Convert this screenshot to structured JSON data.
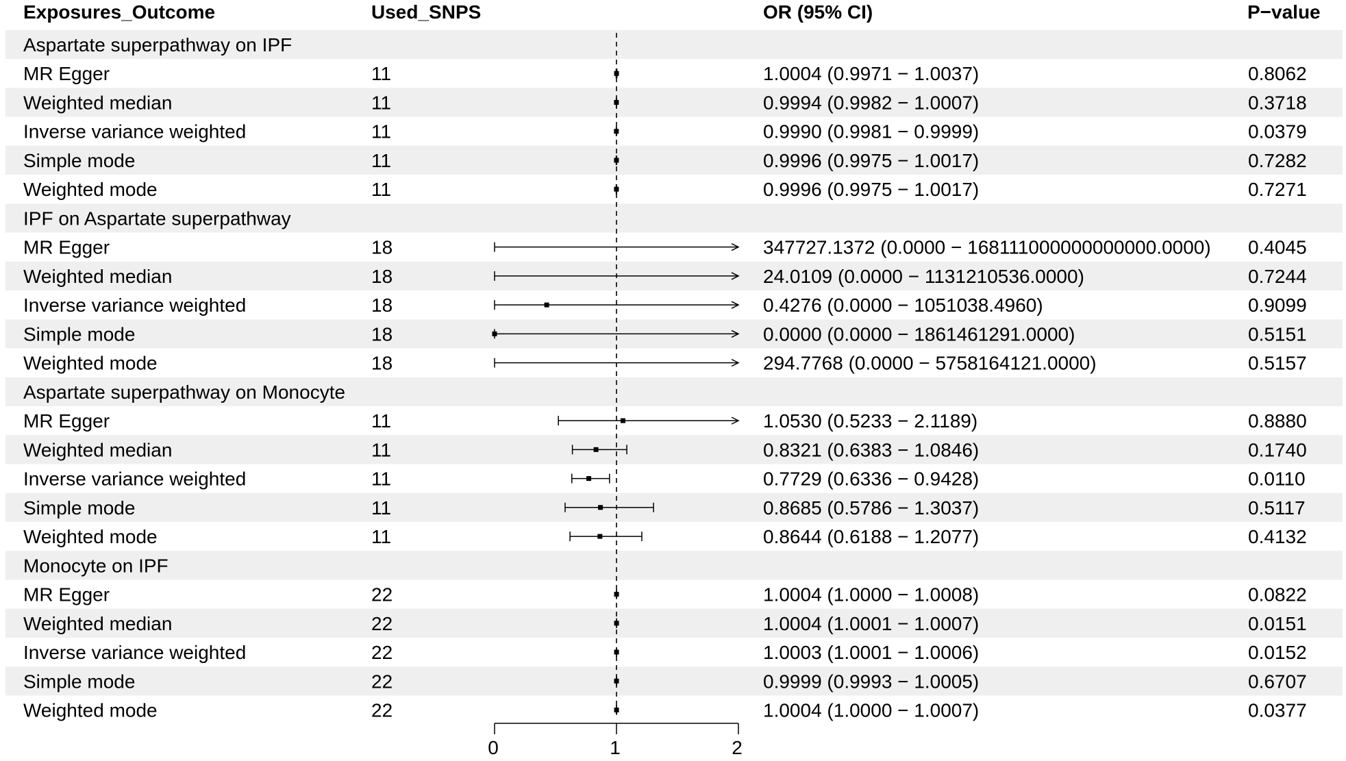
{
  "columns": {
    "exposure": "Exposures_Outcome",
    "snps": "Used_SNPS",
    "or": "OR (95% CI)",
    "p": "P−value"
  },
  "chart_data": {
    "type": "forest",
    "reference_line": 1,
    "xlim": [
      0,
      2
    ],
    "x_ticks": [
      "0",
      "1",
      "2"
    ],
    "rows": [
      {
        "label": "Aspartate superpathway on IPF",
        "group": true
      },
      {
        "label": "MR Egger",
        "snps": "11",
        "or": 1.0004,
        "lo": 0.9971,
        "hi": 1.0037,
        "or_text": "1.0004 (0.9971 − 1.0037)",
        "p": "0.8062"
      },
      {
        "label": "Weighted median",
        "snps": "11",
        "or": 0.9994,
        "lo": 0.9982,
        "hi": 1.0007,
        "or_text": "0.9994 (0.9982 − 1.0007)",
        "p": "0.3718"
      },
      {
        "label": "Inverse variance weighted",
        "snps": "11",
        "or": 0.999,
        "lo": 0.9981,
        "hi": 0.9999,
        "or_text": "0.9990 (0.9981 − 0.9999)",
        "p": "0.0379"
      },
      {
        "label": "Simple mode",
        "snps": "11",
        "or": 0.9996,
        "lo": 0.9975,
        "hi": 1.0017,
        "or_text": "0.9996 (0.9975 − 1.0017)",
        "p": "0.7282"
      },
      {
        "label": "Weighted mode",
        "snps": "11",
        "or": 0.9996,
        "lo": 0.9975,
        "hi": 1.0017,
        "or_text": "0.9996 (0.9975 − 1.0017)",
        "p": "0.7271"
      },
      {
        "label": "IPF on Aspartate superpathway",
        "group": true
      },
      {
        "label": "MR Egger",
        "snps": "18",
        "or": 347727.1372,
        "lo": 0.0,
        "hi": 1.68111e+17,
        "or_text": "347727.1372 (0.0000 − 168111000000000000.0000)",
        "p": "0.4045"
      },
      {
        "label": "Weighted median",
        "snps": "18",
        "or": 24.0109,
        "lo": 0.0,
        "hi": 1131210536.0,
        "or_text": "24.0109 (0.0000 − 1131210536.0000)",
        "p": "0.7244"
      },
      {
        "label": "Inverse variance weighted",
        "snps": "18",
        "or": 0.4276,
        "lo": 0.0,
        "hi": 1051038.496,
        "or_text": "0.4276 (0.0000 − 1051038.4960)",
        "p": "0.9099"
      },
      {
        "label": "Simple mode",
        "snps": "18",
        "or": 0.0,
        "lo": 0.0,
        "hi": 1861461291.0,
        "or_text": "0.0000 (0.0000 − 1861461291.0000)",
        "p": "0.5151"
      },
      {
        "label": "Weighted mode",
        "snps": "18",
        "or": 294.7768,
        "lo": 0.0,
        "hi": 5758164121.0,
        "or_text": "294.7768 (0.0000 − 5758164121.0000)",
        "p": "0.5157"
      },
      {
        "label": "Aspartate superpathway on Monocyte",
        "group": true
      },
      {
        "label": "MR Egger",
        "snps": "11",
        "or": 1.053,
        "lo": 0.5233,
        "hi": 2.1189,
        "or_text": "1.0530 (0.5233 − 2.1189)",
        "p": "0.8880"
      },
      {
        "label": "Weighted median",
        "snps": "11",
        "or": 0.8321,
        "lo": 0.6383,
        "hi": 1.0846,
        "or_text": "0.8321 (0.6383 − 1.0846)",
        "p": "0.1740"
      },
      {
        "label": "Inverse variance weighted",
        "snps": "11",
        "or": 0.7729,
        "lo": 0.6336,
        "hi": 0.9428,
        "or_text": "0.7729 (0.6336 − 0.9428)",
        "p": "0.0110"
      },
      {
        "label": "Simple mode",
        "snps": "11",
        "or": 0.8685,
        "lo": 0.5786,
        "hi": 1.3037,
        "or_text": "0.8685 (0.5786 − 1.3037)",
        "p": "0.5117"
      },
      {
        "label": "Weighted mode",
        "snps": "11",
        "or": 0.8644,
        "lo": 0.6188,
        "hi": 1.2077,
        "or_text": "0.8644 (0.6188 − 1.2077)",
        "p": "0.4132"
      },
      {
        "label": "Monocyte on IPF",
        "group": true
      },
      {
        "label": "MR Egger",
        "snps": "22",
        "or": 1.0004,
        "lo": 1.0,
        "hi": 1.0008,
        "or_text": "1.0004 (1.0000 − 1.0008)",
        "p": "0.0822"
      },
      {
        "label": "Weighted median",
        "snps": "22",
        "or": 1.0004,
        "lo": 1.0001,
        "hi": 1.0007,
        "or_text": "1.0004 (1.0001 − 1.0007)",
        "p": "0.0151"
      },
      {
        "label": "Inverse variance weighted",
        "snps": "22",
        "or": 1.0003,
        "lo": 1.0001,
        "hi": 1.0006,
        "or_text": "1.0003 (1.0001 − 1.0006)",
        "p": "0.0152"
      },
      {
        "label": "Simple mode",
        "snps": "22",
        "or": 0.9999,
        "lo": 0.9993,
        "hi": 1.0005,
        "or_text": "0.9999 (0.9993 − 1.0005)",
        "p": "0.6707"
      },
      {
        "label": "Weighted mode",
        "snps": "22",
        "or": 1.0004,
        "lo": 1.0,
        "hi": 1.0007,
        "or_text": "1.0004 (1.0000 − 1.0007)",
        "p": "0.0377"
      }
    ]
  }
}
